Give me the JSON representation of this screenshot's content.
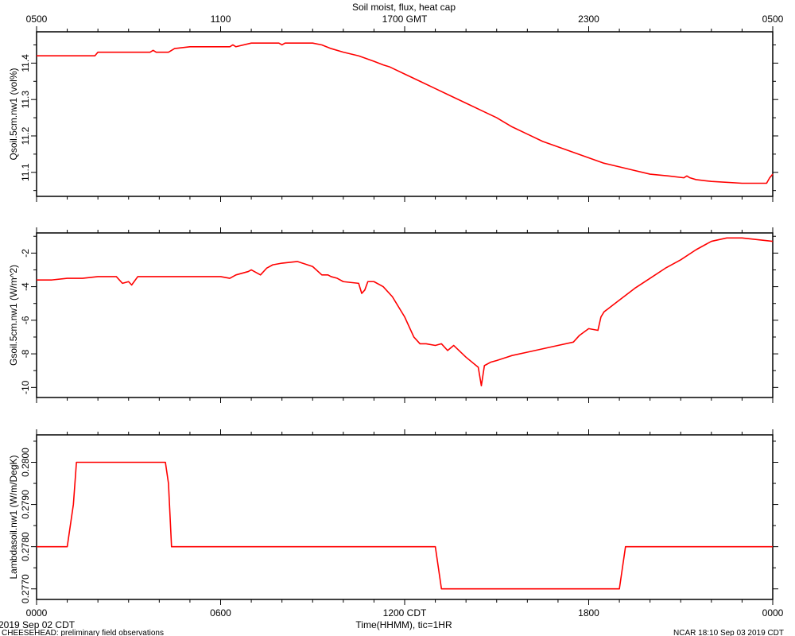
{
  "title": "Soil moist, flux, heat cap",
  "top_axis_ticks": [
    "0500",
    "1100",
    "1700 GMT",
    "2300",
    "0500"
  ],
  "bottom_axis_ticks": [
    "0000",
    "0600",
    "1200 CDT",
    "1800",
    "0000"
  ],
  "xlabel": "Time(HHMM), tic=1HR",
  "footer": {
    "date": "2019 Sep 02 CDT",
    "project": "CHEESEHEAD: preliminary field observations",
    "stamp": "NCAR 18:10 Sep 03 2019 CDT"
  },
  "colors": {
    "line": "#ff0000",
    "axis": "#000000"
  },
  "chart_data": [
    {
      "type": "line",
      "ylabel": "Qsoil.5cm.nw1 (vol%)",
      "ylim": [
        11.034,
        11.486
      ],
      "yticks": [
        11.1,
        11.2,
        11.3,
        11.4
      ],
      "ytick_labels": [
        "11.1",
        "11.2",
        "11.3",
        "11.4"
      ],
      "x_range_hours": [
        0,
        24
      ],
      "series": [
        {
          "x": [
            0,
            0.5,
            1.0,
            1.9,
            2.0,
            3.0,
            3.7,
            3.8,
            3.9,
            4.3,
            4.5,
            5.0,
            6.3,
            6.4,
            6.5,
            7.0,
            7.9,
            8.0,
            8.1,
            9.0,
            9.3,
            9.6,
            10.0,
            10.5,
            11.0,
            11.3,
            11.5,
            12.0,
            12.5,
            13.0,
            13.5,
            14.0,
            14.5,
            15.0,
            15.5,
            16.0,
            16.5,
            17.0,
            17.5,
            18.0,
            18.5,
            19.0,
            19.5,
            20.0,
            20.6,
            21.1,
            21.2,
            21.3,
            21.5,
            22.0,
            23.0,
            23.8,
            23.9,
            24.0
          ],
          "y": [
            11.42,
            11.42,
            11.42,
            11.42,
            11.43,
            11.43,
            11.43,
            11.435,
            11.43,
            11.43,
            11.44,
            11.445,
            11.445,
            11.45,
            11.445,
            11.455,
            11.455,
            11.45,
            11.455,
            11.455,
            11.45,
            11.44,
            11.43,
            11.42,
            11.405,
            11.395,
            11.39,
            11.37,
            11.35,
            11.33,
            11.31,
            11.29,
            11.27,
            11.25,
            11.225,
            11.205,
            11.185,
            11.17,
            11.155,
            11.14,
            11.125,
            11.115,
            11.105,
            11.095,
            11.09,
            11.085,
            11.09,
            11.085,
            11.08,
            11.075,
            11.07,
            11.07,
            11.085,
            11.095
          ]
        }
      ]
    },
    {
      "type": "line",
      "ylabel": "Gsoil.5cm.nw1 (W/m^2)",
      "ylim": [
        -10.6,
        -0.8
      ],
      "yticks": [
        -10,
        -8,
        -6,
        -4,
        -2
      ],
      "ytick_labels": [
        "-10",
        "-8",
        "-6",
        "-4",
        "-2"
      ],
      "x_range_hours": [
        0,
        24
      ],
      "series": [
        {
          "x": [
            0,
            0.5,
            1.0,
            1.5,
            2.0,
            2.5,
            2.6,
            2.8,
            3.0,
            3.1,
            3.3,
            4.0,
            5.0,
            6.0,
            6.3,
            6.4,
            6.5,
            6.9,
            7.0,
            7.3,
            7.5,
            7.7,
            8.0,
            8.5,
            9.0,
            9.3,
            9.5,
            9.6,
            9.8,
            10.0,
            10.5,
            10.6,
            10.7,
            10.8,
            11.0,
            11.3,
            11.6,
            12.0,
            12.3,
            12.5,
            12.7,
            13.0,
            13.2,
            13.4,
            13.6,
            14.0,
            14.4,
            14.5,
            14.6,
            14.8,
            15.0,
            15.5,
            16.0,
            16.5,
            17.0,
            17.5,
            17.6,
            17.7,
            18.0,
            18.3,
            18.4,
            18.5,
            19.0,
            19.5,
            20.0,
            20.5,
            21.0,
            21.5,
            22.0,
            22.5,
            23.0,
            23.5,
            24.0
          ],
          "y": [
            -3.6,
            -3.6,
            -3.5,
            -3.5,
            -3.4,
            -3.4,
            -3.4,
            -3.8,
            -3.7,
            -3.9,
            -3.4,
            -3.4,
            -3.4,
            -3.4,
            -3.5,
            -3.4,
            -3.3,
            -3.1,
            -3.0,
            -3.3,
            -2.9,
            -2.7,
            -2.6,
            -2.5,
            -2.8,
            -3.3,
            -3.3,
            -3.4,
            -3.5,
            -3.7,
            -3.8,
            -4.4,
            -4.2,
            -3.7,
            -3.7,
            -4.0,
            -4.6,
            -5.8,
            -7.0,
            -7.4,
            -7.4,
            -7.5,
            -7.4,
            -7.8,
            -7.5,
            -8.2,
            -8.8,
            -9.9,
            -8.7,
            -8.5,
            -8.4,
            -8.1,
            -7.9,
            -7.7,
            -7.5,
            -7.3,
            -7.1,
            -6.9,
            -6.5,
            -6.6,
            -5.8,
            -5.5,
            -4.8,
            -4.1,
            -3.5,
            -2.9,
            -2.4,
            -1.8,
            -1.3,
            -1.1,
            -1.1,
            -1.2,
            -1.3
          ]
        }
      ]
    },
    {
      "type": "line",
      "ylabel": "Lambdasoil.nw1 (W/m/DegK)",
      "ylim": [
        0.27675,
        0.28065
      ],
      "yticks": [
        0.277,
        0.278,
        0.279,
        0.28
      ],
      "ytick_labels": [
        "0.2770",
        "0.2780",
        "0.2790",
        "0.2800"
      ],
      "x_range_hours": [
        0,
        24
      ],
      "series": [
        {
          "x": [
            0,
            1.0,
            1.2,
            1.3,
            4.2,
            4.3,
            4.4,
            13.0,
            13.1,
            13.2,
            19.0,
            19.1,
            19.2,
            24.0
          ],
          "y": [
            0.278,
            0.278,
            0.279,
            0.28,
            0.28,
            0.2795,
            0.278,
            0.278,
            0.2775,
            0.277,
            0.277,
            0.2775,
            0.278,
            0.278
          ]
        }
      ]
    }
  ]
}
